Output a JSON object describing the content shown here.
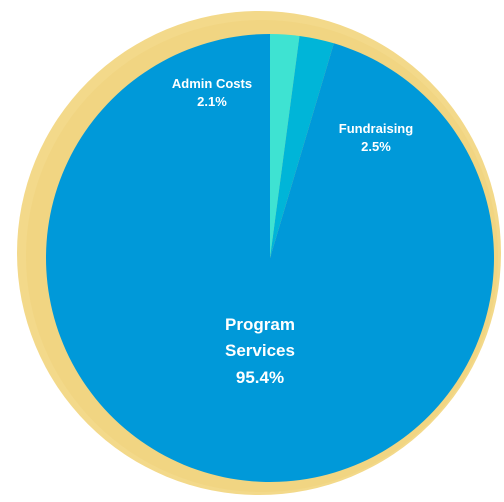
{
  "chart_data": {
    "type": "pie",
    "categories": [
      "Admin Costs",
      "Fundraising",
      "Program Services"
    ],
    "values": [
      2.1,
      2.5,
      95.4
    ],
    "value_labels": [
      "2.1%",
      "2.5%",
      "95.4%"
    ],
    "colors": [
      "#3ee3d2",
      "#00b5d8",
      "#0099d9"
    ]
  }
}
